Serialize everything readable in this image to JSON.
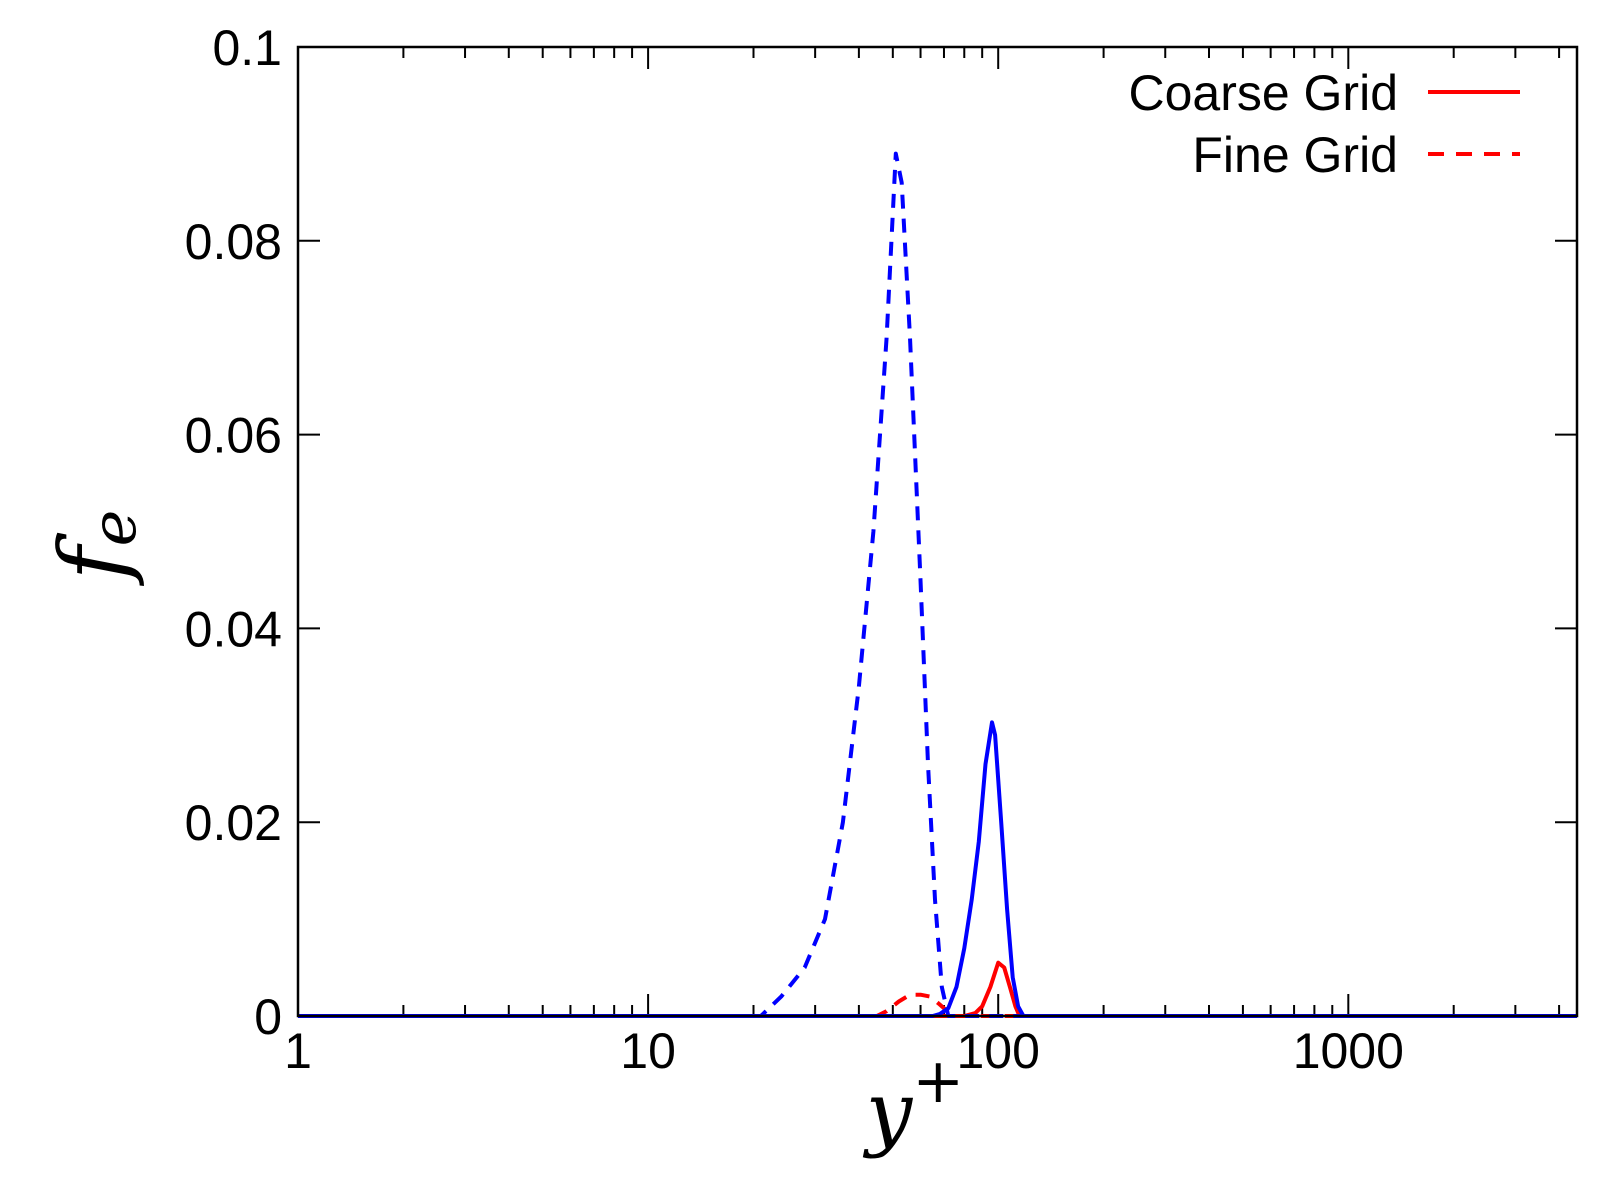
{
  "chart_data": {
    "type": "line",
    "xscale": "log",
    "xlim": [
      1,
      4500
    ],
    "ylim": [
      0,
      0.1
    ],
    "x_ticks": [
      1,
      10,
      100,
      1000
    ],
    "x_tick_labels": [
      "1",
      "10",
      "100",
      "1000"
    ],
    "y_ticks": [
      0,
      0.02,
      0.04,
      0.06,
      0.08,
      0.1
    ],
    "y_tick_labels": [
      "0",
      "0.02",
      "0.04",
      "0.06",
      "0.08",
      "0.1"
    ],
    "xlabel": {
      "base": "y",
      "sup": "+"
    },
    "ylabel": {
      "base": "f",
      "sub": "e"
    },
    "legend_position": "top-right",
    "legend": [
      {
        "label": "Coarse Grid",
        "color": "#ff0000",
        "style": "solid"
      },
      {
        "label": "Fine Grid",
        "color": "#ff0000",
        "style": "dashed"
      }
    ],
    "series": [
      {
        "name": "Coarse Grid",
        "color": "#ff0000",
        "style": "solid",
        "x": [
          1,
          80,
          86,
          90,
          95,
          100,
          104,
          108,
          112,
          115,
          4500
        ],
        "y": [
          0,
          0,
          0.0003,
          0.001,
          0.003,
          0.0055,
          0.005,
          0.003,
          0.001,
          0,
          0
        ]
      },
      {
        "name": "Fine Grid",
        "color": "#ff0000",
        "style": "dashed",
        "x": [
          1,
          45,
          48,
          52,
          56,
          60,
          64,
          68,
          72,
          76,
          4500
        ],
        "y": [
          0,
          0,
          0.0005,
          0.0015,
          0.0022,
          0.0022,
          0.002,
          0.0012,
          0.0004,
          0,
          0
        ]
      },
      {
        "color": "#0000ff",
        "style": "solid",
        "x": [
          1,
          65,
          68,
          72,
          76,
          80,
          84,
          88,
          92,
          96,
          98,
          102,
          106,
          110,
          114,
          118,
          4500
        ],
        "y": [
          0,
          0,
          0.0002,
          0.0008,
          0.003,
          0.007,
          0.012,
          0.018,
          0.026,
          0.0303,
          0.029,
          0.02,
          0.011,
          0.004,
          0.001,
          0,
          0
        ]
      },
      {
        "color": "#0000ff",
        "style": "dashed",
        "x": [
          1,
          21,
          24,
          28,
          32,
          36,
          40,
          44,
          48,
          51,
          53,
          56,
          60,
          63,
          66,
          69,
          72,
          4500
        ],
        "y": [
          0,
          0,
          0.002,
          0.005,
          0.01,
          0.02,
          0.034,
          0.05,
          0.07,
          0.089,
          0.086,
          0.07,
          0.045,
          0.026,
          0.012,
          0.003,
          0,
          0
        ]
      }
    ]
  }
}
